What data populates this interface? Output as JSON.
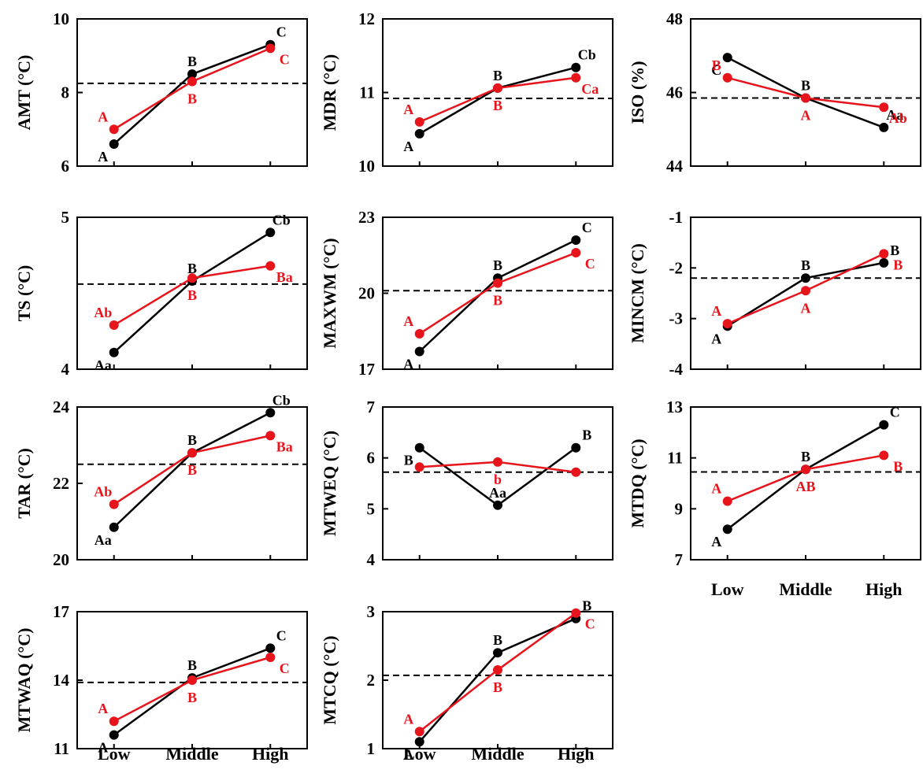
{
  "colors": {
    "black_series": "#000000",
    "red_series": "#e8141b",
    "reference_line": "#000000"
  },
  "x_categories": [
    "Low",
    "Middle",
    "High"
  ],
  "chart_data": [
    {
      "type": "line",
      "ylabel": "AMT (°C)",
      "ylim": [
        6,
        10
      ],
      "yticks": [
        "6",
        "8",
        "10"
      ],
      "ref": 8.25,
      "series": [
        {
          "color": "black",
          "values": [
            6.6,
            8.5,
            9.3
          ],
          "labels": [
            "A",
            "B",
            "C"
          ]
        },
        {
          "color": "red",
          "values": [
            7.0,
            8.3,
            9.2
          ],
          "labels": [
            "A",
            "B",
            "C"
          ]
        }
      ]
    },
    {
      "type": "line",
      "ylabel": "MDR (°C)",
      "ylim": [
        10,
        12
      ],
      "yticks": [
        "10",
        "11",
        "12"
      ],
      "ref": 10.92,
      "series": [
        {
          "color": "black",
          "values": [
            10.44,
            11.06,
            11.34
          ],
          "labels": [
            "A",
            "B",
            "Cb"
          ]
        },
        {
          "color": "red",
          "values": [
            10.6,
            11.06,
            11.2
          ],
          "labels": [
            "A",
            "B",
            "Ca"
          ]
        }
      ]
    },
    {
      "type": "line",
      "ylabel": "ISO (%)",
      "ylim": [
        44,
        48
      ],
      "yticks": [
        "44",
        "46",
        "48"
      ],
      "ref": 45.85,
      "series": [
        {
          "color": "black",
          "values": [
            46.95,
            45.85,
            45.05
          ],
          "labels": [
            "C",
            "B",
            "Aa"
          ]
        },
        {
          "color": "red",
          "values": [
            46.4,
            45.85,
            45.6
          ],
          "labels": [
            "B",
            "A",
            "Ab"
          ]
        }
      ]
    },
    {
      "type": "line",
      "ylabel": "TS (°C)",
      "ylim": [
        4,
        5
      ],
      "yticks": [
        "4",
        "5"
      ],
      "ref": 4.56,
      "series": [
        {
          "color": "black",
          "values": [
            4.11,
            4.58,
            4.9
          ],
          "labels": [
            "Aa",
            "B",
            "Cb"
          ]
        },
        {
          "color": "red",
          "values": [
            4.29,
            4.6,
            4.68
          ],
          "labels": [
            "Ab",
            "B",
            "Ba"
          ]
        }
      ]
    },
    {
      "type": "line",
      "ylabel": "MAXWM (°C)",
      "ylim": [
        17,
        23
      ],
      "yticks": [
        "17",
        "20",
        "23"
      ],
      "ref": 20.1,
      "series": [
        {
          "color": "black",
          "values": [
            17.7,
            20.6,
            22.1
          ],
          "labels": [
            "A",
            "B",
            "C"
          ]
        },
        {
          "color": "red",
          "values": [
            18.4,
            20.4,
            21.6
          ],
          "labels": [
            "A",
            "B",
            "C"
          ]
        }
      ]
    },
    {
      "type": "line",
      "ylabel": "MINCM (°C)",
      "ylim": [
        -4,
        -1
      ],
      "yticks": [
        "-4",
        "-3",
        "-2",
        "-1"
      ],
      "ref": -2.2,
      "series": [
        {
          "color": "black",
          "values": [
            -3.15,
            -2.2,
            -1.9
          ],
          "labels": [
            "A",
            "B",
            "B"
          ]
        },
        {
          "color": "red",
          "values": [
            -3.1,
            -2.45,
            -1.72
          ],
          "labels": [
            "A",
            "A",
            "B"
          ]
        }
      ]
    },
    {
      "type": "line",
      "ylabel": "TAR (°C)",
      "ylim": [
        20,
        24
      ],
      "yticks": [
        "20",
        "22",
        "24"
      ],
      "ref": 22.5,
      "series": [
        {
          "color": "black",
          "values": [
            20.85,
            22.8,
            23.85
          ],
          "labels": [
            "Aa",
            "B",
            "Cb"
          ]
        },
        {
          "color": "red",
          "values": [
            21.45,
            22.8,
            23.25
          ],
          "labels": [
            "Ab",
            "B",
            "Ba"
          ]
        }
      ]
    },
    {
      "type": "line",
      "ylabel": "MTWEQ (°C)",
      "ylim": [
        4,
        7
      ],
      "yticks": [
        "4",
        "5",
        "6",
        "7"
      ],
      "ref": 5.72,
      "series": [
        {
          "color": "black",
          "values": [
            6.2,
            5.07,
            6.2
          ],
          "labels": [
            "B",
            "Aa",
            "B"
          ]
        },
        {
          "color": "red",
          "values": [
            5.82,
            5.92,
            5.72
          ],
          "labels": [
            "",
            "b",
            ""
          ]
        }
      ]
    },
    {
      "type": "line",
      "ylabel": "MTDQ (°C)",
      "ylim": [
        7,
        13
      ],
      "yticks": [
        "7",
        "9",
        "11",
        "13"
      ],
      "ref": 10.45,
      "series": [
        {
          "color": "black",
          "values": [
            8.2,
            10.55,
            12.3
          ],
          "labels": [
            "A",
            "B",
            "C"
          ]
        },
        {
          "color": "red",
          "values": [
            9.3,
            10.55,
            11.1
          ],
          "labels": [
            "A",
            "AB",
            "B"
          ]
        }
      ]
    },
    {
      "type": "line",
      "ylabel": "MTWAQ (°C)",
      "ylim": [
        11,
        17
      ],
      "yticks": [
        "11",
        "14",
        "17"
      ],
      "ref": 13.9,
      "series": [
        {
          "color": "black",
          "values": [
            11.6,
            14.1,
            15.4
          ],
          "labels": [
            "A",
            "B",
            "C"
          ]
        },
        {
          "color": "red",
          "values": [
            12.2,
            14.0,
            15.0
          ],
          "labels": [
            "A",
            "B",
            "C"
          ]
        }
      ]
    },
    {
      "type": "line",
      "ylabel": "MTCQ (°C)",
      "ylim": [
        1,
        3
      ],
      "yticks": [
        "1",
        "2",
        "3"
      ],
      "ref": 2.07,
      "series": [
        {
          "color": "black",
          "values": [
            1.1,
            2.4,
            2.9
          ],
          "labels": [
            "A",
            "B",
            "B"
          ]
        },
        {
          "color": "red",
          "values": [
            1.25,
            2.15,
            2.98
          ],
          "labels": [
            "A",
            "B",
            "C"
          ]
        }
      ]
    }
  ]
}
